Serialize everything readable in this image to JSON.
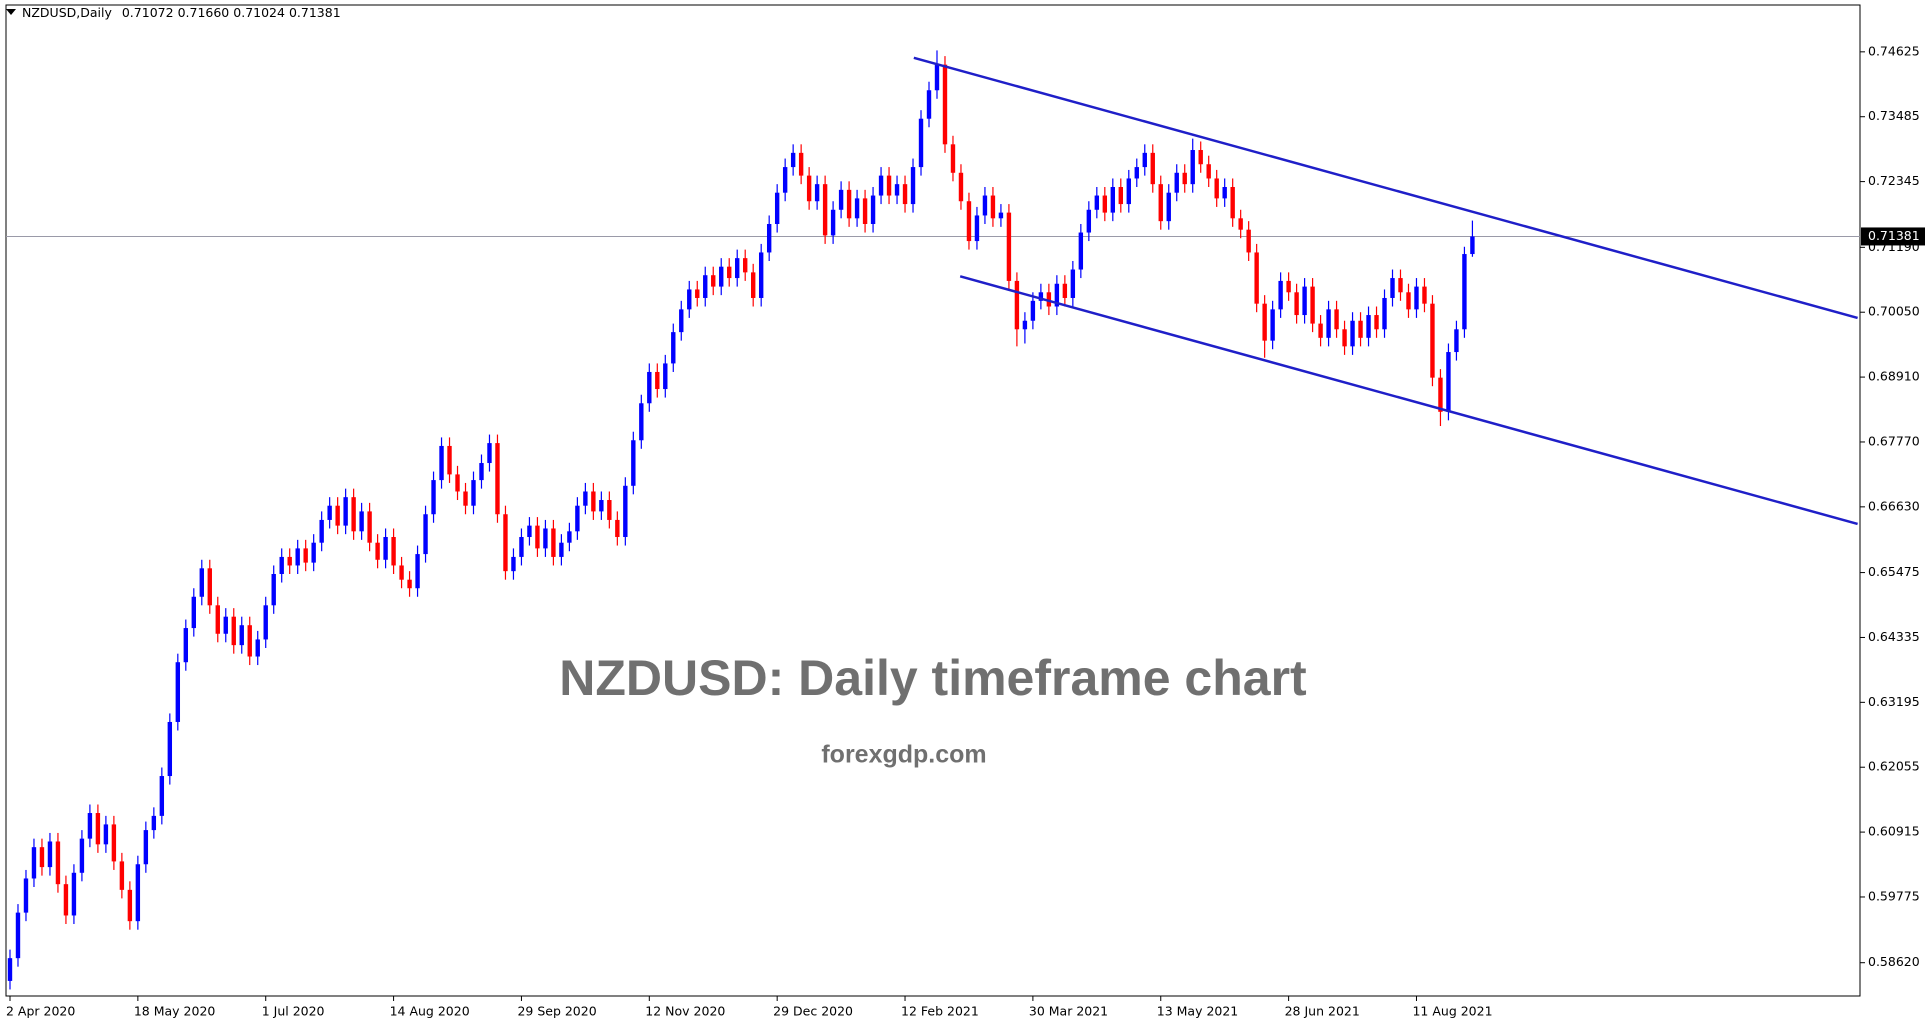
{
  "chart_data": {
    "type": "candlestick",
    "header": {
      "symbol": "NZDUSD,Daily",
      "prices": [
        "0.71072",
        "0.71660",
        "0.71024",
        "0.71381"
      ]
    },
    "title": "NZDUSD: Daily timeframe chart",
    "subtitle": "forexgdp.com",
    "up_color": "#0000ff",
    "down_color": "#ff0000",
    "line_color": "#1f1fc8",
    "price_line_color": "#9a9aa8",
    "xlim": [
      -0.5,
      231.5
    ],
    "xticks": [
      {
        "value": 0,
        "label": "2 Apr 2020"
      },
      {
        "value": 16,
        "label": "18 May 2020"
      },
      {
        "value": 32,
        "label": "1 Jul 2020"
      },
      {
        "value": 48,
        "label": "14 Aug 2020"
      },
      {
        "value": 64,
        "label": "29 Sep 2020"
      },
      {
        "value": 80,
        "label": "12 Nov 2020"
      },
      {
        "value": 96,
        "label": "29 Dec 2020"
      },
      {
        "value": 112,
        "label": "12 Feb 2021"
      },
      {
        "value": 128,
        "label": "30 Mar 2021"
      },
      {
        "value": 144,
        "label": "13 May 2021"
      },
      {
        "value": 160,
        "label": "28 Jun 2021"
      },
      {
        "value": 176,
        "label": "11 Aug 2021"
      }
    ],
    "ylim": [
      0.58035,
      0.75448
    ],
    "yticks": [
      0.74625,
      0.73485,
      0.72345,
      {
        "value": 0.7119,
        "label": "0.71190"
      },
      {
        "value": 0.7005,
        "label": "0.70050"
      },
      {
        "value": 0.6891,
        "label": "0.68910"
      },
      {
        "value": 0.6777,
        "label": "0.67770"
      },
      {
        "value": 0.6663,
        "label": "0.66630"
      },
      0.65475,
      0.64335,
      0.63195,
      0.62055,
      0.60915,
      0.59775,
      {
        "value": 0.5862,
        "label": "0.58620"
      }
    ],
    "trend_lines": [
      {
        "x": [
          113.1,
          231.2
        ],
        "y": [
          0.7452,
          0.6995
        ]
      },
      {
        "x": [
          118.9,
          231.2
        ],
        "y": [
          0.7068,
          0.6633
        ]
      }
    ],
    "open": [
      0.583,
      0.587,
      0.595,
      0.601,
      0.6065,
      0.603,
      0.6075,
      0.6,
      0.5945,
      0.602,
      0.608,
      0.6125,
      0.607,
      0.6105,
      0.604,
      0.599,
      0.5935,
      0.6035,
      0.6095,
      0.612,
      0.619,
      0.6285,
      0.639,
      0.645,
      0.6505,
      0.6555,
      0.649,
      0.644,
      0.647,
      0.642,
      0.6455,
      0.64,
      0.643,
      0.649,
      0.6545,
      0.6575,
      0.656,
      0.659,
      0.6565,
      0.66,
      0.664,
      0.6665,
      0.663,
      0.668,
      0.662,
      0.6655,
      0.66,
      0.657,
      0.661,
      0.656,
      0.6535,
      0.652,
      0.658,
      0.665,
      0.671,
      0.677,
      0.672,
      0.669,
      0.6665,
      0.671,
      0.674,
      0.6775,
      0.665,
      0.655,
      0.6575,
      0.661,
      0.663,
      0.659,
      0.6625,
      0.6575,
      0.66,
      0.662,
      0.6665,
      0.669,
      0.6655,
      0.6675,
      0.664,
      0.661,
      0.67,
      0.678,
      0.6845,
      0.69,
      0.687,
      0.6915,
      0.697,
      0.701,
      0.7045,
      0.703,
      0.707,
      0.705,
      0.7085,
      0.7065,
      0.71,
      0.7075,
      0.703,
      0.711,
      0.716,
      0.7215,
      0.726,
      0.7285,
      0.7245,
      0.72,
      0.723,
      0.714,
      0.7185,
      0.722,
      0.717,
      0.7205,
      0.716,
      0.721,
      0.7245,
      0.721,
      0.723,
      0.7195,
      0.726,
      0.7345,
      0.7395,
      0.744,
      0.73,
      0.725,
      0.72,
      0.713,
      0.7175,
      0.721,
      0.717,
      0.718,
      0.706,
      0.6975,
      0.699,
      0.7025,
      0.704,
      0.7015,
      0.7055,
      0.703,
      0.708,
      0.7145,
      0.7185,
      0.721,
      0.718,
      0.7225,
      0.7195,
      0.724,
      0.726,
      0.7285,
      0.723,
      0.7165,
      0.7215,
      0.725,
      0.723,
      0.729,
      0.7265,
      0.724,
      0.7205,
      0.7225,
      0.717,
      0.715,
      0.711,
      0.702,
      0.6955,
      0.701,
      0.706,
      0.704,
      0.7,
      0.705,
      0.6985,
      0.696,
      0.701,
      0.6975,
      0.6945,
      0.699,
      0.696,
      0.7,
      0.6975,
      0.703,
      0.7065,
      0.704,
      0.701,
      0.705,
      0.702,
      0.689,
      0.683,
      0.6935,
      0.6975,
      0.71072
    ],
    "high": [
      0.5885,
      0.5965,
      0.6025,
      0.608,
      0.608,
      0.609,
      0.609,
      0.6015,
      0.6035,
      0.6095,
      0.614,
      0.614,
      0.612,
      0.612,
      0.6055,
      0.6005,
      0.605,
      0.611,
      0.6135,
      0.6205,
      0.63,
      0.6405,
      0.6465,
      0.652,
      0.657,
      0.657,
      0.6505,
      0.6485,
      0.6485,
      0.647,
      0.647,
      0.6445,
      0.6505,
      0.656,
      0.659,
      0.659,
      0.6605,
      0.6605,
      0.6615,
      0.6655,
      0.668,
      0.668,
      0.6695,
      0.6695,
      0.667,
      0.667,
      0.6615,
      0.6625,
      0.6625,
      0.6575,
      0.655,
      0.6595,
      0.6665,
      0.6725,
      0.6785,
      0.6785,
      0.6735,
      0.6705,
      0.6725,
      0.6755,
      0.679,
      0.679,
      0.6665,
      0.659,
      0.6625,
      0.6645,
      0.6645,
      0.664,
      0.664,
      0.6615,
      0.6635,
      0.668,
      0.6705,
      0.6705,
      0.669,
      0.669,
      0.6655,
      0.6715,
      0.6795,
      0.686,
      0.6915,
      0.6915,
      0.693,
      0.6985,
      0.7025,
      0.706,
      0.706,
      0.7085,
      0.7085,
      0.71,
      0.71,
      0.7115,
      0.7115,
      0.709,
      0.7125,
      0.7175,
      0.723,
      0.7275,
      0.73,
      0.73,
      0.726,
      0.7245,
      0.7245,
      0.72,
      0.7235,
      0.7235,
      0.722,
      0.722,
      0.7225,
      0.726,
      0.726,
      0.7245,
      0.7245,
      0.7275,
      0.736,
      0.741,
      0.7465,
      0.7455,
      0.7315,
      0.7265,
      0.7215,
      0.719,
      0.7225,
      0.7225,
      0.7195,
      0.7195,
      0.7075,
      0.7005,
      0.704,
      0.7055,
      0.7055,
      0.707,
      0.707,
      0.7095,
      0.716,
      0.72,
      0.7225,
      0.7225,
      0.724,
      0.724,
      0.7255,
      0.7275,
      0.73,
      0.73,
      0.7245,
      0.723,
      0.7265,
      0.7265,
      0.731,
      0.7305,
      0.728,
      0.7255,
      0.724,
      0.724,
      0.7185,
      0.7165,
      0.7125,
      0.7035,
      0.7025,
      0.7075,
      0.7075,
      0.7055,
      0.7065,
      0.7065,
      0.7,
      0.7025,
      0.7025,
      0.699,
      0.7005,
      0.7005,
      0.7015,
      0.7015,
      0.7045,
      0.708,
      0.708,
      0.7055,
      0.7065,
      0.7065,
      0.7035,
      0.6905,
      0.695,
      0.699,
      0.712,
      0.7166
    ],
    "low": [
      0.5815,
      0.5855,
      0.5935,
      0.5995,
      0.6015,
      0.6015,
      0.5985,
      0.593,
      0.593,
      0.6005,
      0.6065,
      0.6055,
      0.6055,
      0.6025,
      0.5975,
      0.592,
      0.592,
      0.602,
      0.608,
      0.6105,
      0.6175,
      0.627,
      0.6375,
      0.6435,
      0.649,
      0.6475,
      0.6425,
      0.6425,
      0.6405,
      0.6405,
      0.6385,
      0.6385,
      0.6415,
      0.6475,
      0.653,
      0.6545,
      0.6545,
      0.655,
      0.655,
      0.6585,
      0.6625,
      0.6615,
      0.6615,
      0.6605,
      0.6605,
      0.6585,
      0.6555,
      0.6555,
      0.6545,
      0.652,
      0.6505,
      0.6505,
      0.6565,
      0.6635,
      0.6695,
      0.6705,
      0.6675,
      0.665,
      0.665,
      0.6695,
      0.6725,
      0.6635,
      0.6535,
      0.6535,
      0.656,
      0.6595,
      0.6575,
      0.6575,
      0.656,
      0.656,
      0.6585,
      0.6605,
      0.665,
      0.664,
      0.664,
      0.6625,
      0.6595,
      0.6595,
      0.6685,
      0.6765,
      0.683,
      0.6855,
      0.6855,
      0.69,
      0.6955,
      0.6995,
      0.7015,
      0.7015,
      0.7035,
      0.7035,
      0.705,
      0.705,
      0.706,
      0.7015,
      0.7015,
      0.7095,
      0.7145,
      0.72,
      0.7245,
      0.723,
      0.7185,
      0.7185,
      0.7125,
      0.7125,
      0.717,
      0.7155,
      0.7155,
      0.7145,
      0.7145,
      0.7195,
      0.7195,
      0.7195,
      0.718,
      0.718,
      0.7245,
      0.733,
      0.738,
      0.7285,
      0.7235,
      0.7185,
      0.7115,
      0.7115,
      0.716,
      0.7155,
      0.7155,
      0.7045,
      0.6945,
      0.695,
      0.6975,
      0.701,
      0.7,
      0.7,
      0.7015,
      0.7015,
      0.7065,
      0.713,
      0.717,
      0.7165,
      0.7165,
      0.718,
      0.718,
      0.7225,
      0.7245,
      0.7215,
      0.715,
      0.715,
      0.72,
      0.7215,
      0.7215,
      0.725,
      0.7225,
      0.719,
      0.719,
      0.7155,
      0.7135,
      0.7095,
      0.7005,
      0.6925,
      0.694,
      0.6995,
      0.7025,
      0.6985,
      0.6985,
      0.697,
      0.6945,
      0.6945,
      0.696,
      0.693,
      0.693,
      0.6945,
      0.6945,
      0.696,
      0.696,
      0.7015,
      0.7025,
      0.6995,
      0.6995,
      0.7005,
      0.6875,
      0.6805,
      0.6815,
      0.692,
      0.696,
      0.71024
    ],
    "close": [
      0.587,
      0.595,
      0.601,
      0.6065,
      0.603,
      0.6075,
      0.6,
      0.5945,
      0.602,
      0.608,
      0.6125,
      0.607,
      0.6105,
      0.604,
      0.599,
      0.5935,
      0.6035,
      0.6095,
      0.612,
      0.619,
      0.6285,
      0.639,
      0.645,
      0.6505,
      0.6555,
      0.649,
      0.644,
      0.647,
      0.642,
      0.6455,
      0.64,
      0.643,
      0.649,
      0.6545,
      0.6575,
      0.656,
      0.659,
      0.6565,
      0.66,
      0.664,
      0.6665,
      0.663,
      0.668,
      0.662,
      0.6655,
      0.66,
      0.657,
      0.661,
      0.656,
      0.6535,
      0.652,
      0.658,
      0.665,
      0.671,
      0.677,
      0.672,
      0.669,
      0.6665,
      0.671,
      0.674,
      0.6775,
      0.665,
      0.655,
      0.6575,
      0.661,
      0.663,
      0.659,
      0.6625,
      0.6575,
      0.66,
      0.662,
      0.6665,
      0.669,
      0.6655,
      0.6675,
      0.664,
      0.661,
      0.67,
      0.678,
      0.6845,
      0.69,
      0.687,
      0.6915,
      0.697,
      0.701,
      0.7045,
      0.703,
      0.707,
      0.705,
      0.7085,
      0.7065,
      0.71,
      0.7075,
      0.703,
      0.711,
      0.716,
      0.7215,
      0.726,
      0.7285,
      0.7245,
      0.72,
      0.723,
      0.714,
      0.7185,
      0.722,
      0.717,
      0.7205,
      0.716,
      0.721,
      0.7245,
      0.721,
      0.723,
      0.7195,
      0.726,
      0.7345,
      0.7395,
      0.744,
      0.73,
      0.725,
      0.72,
      0.713,
      0.7175,
      0.721,
      0.717,
      0.718,
      0.706,
      0.6975,
      0.699,
      0.7025,
      0.704,
      0.7015,
      0.7055,
      0.703,
      0.708,
      0.7145,
      0.7185,
      0.721,
      0.718,
      0.7225,
      0.7195,
      0.724,
      0.726,
      0.7285,
      0.723,
      0.7165,
      0.7215,
      0.725,
      0.723,
      0.729,
      0.7265,
      0.724,
      0.7205,
      0.7225,
      0.717,
      0.715,
      0.711,
      0.702,
      0.6955,
      0.701,
      0.706,
      0.704,
      0.7,
      0.705,
      0.6985,
      0.696,
      0.701,
      0.6975,
      0.6945,
      0.699,
      0.696,
      0.7,
      0.6975,
      0.703,
      0.7065,
      0.704,
      0.701,
      0.705,
      0.702,
      0.689,
      0.683,
      0.6935,
      0.6975,
      0.71072,
      0.71381
    ]
  }
}
